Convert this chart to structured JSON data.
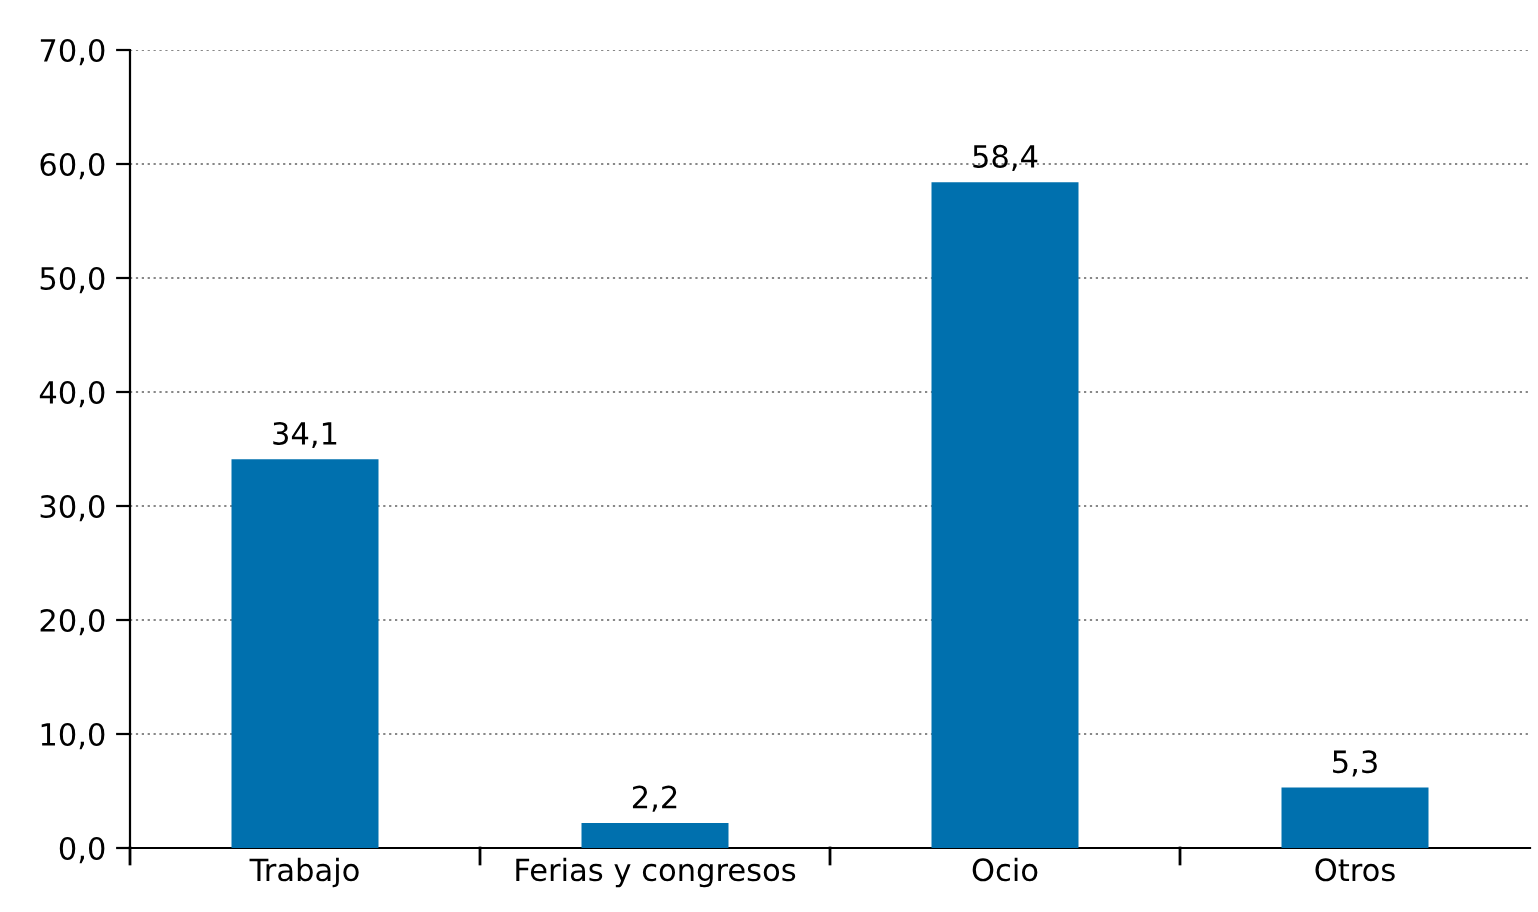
{
  "chart_data": {
    "type": "bar",
    "categories": [
      "Trabajo",
      "Ferias y congresos",
      "Ocio",
      "Otros"
    ],
    "values": [
      34.1,
      2.2,
      58.4,
      5.3
    ],
    "color": "#0070ae",
    "value_labels": [
      "34,1",
      "2,2",
      "58,4",
      "5,3"
    ],
    "ylim": [
      0,
      70
    ],
    "yticks": [
      {
        "value": 0,
        "label": "0,0"
      },
      {
        "value": 10,
        "label": "10,0"
      },
      {
        "value": 20,
        "label": "20,0"
      },
      {
        "value": 30,
        "label": "30,0"
      },
      {
        "value": 40,
        "label": "40,0"
      },
      {
        "value": 50,
        "label": "50,0"
      },
      {
        "value": 60,
        "label": "60,0"
      },
      {
        "value": 70,
        "label": "70,0"
      }
    ],
    "grid": "y",
    "line_style": "dotted"
  }
}
